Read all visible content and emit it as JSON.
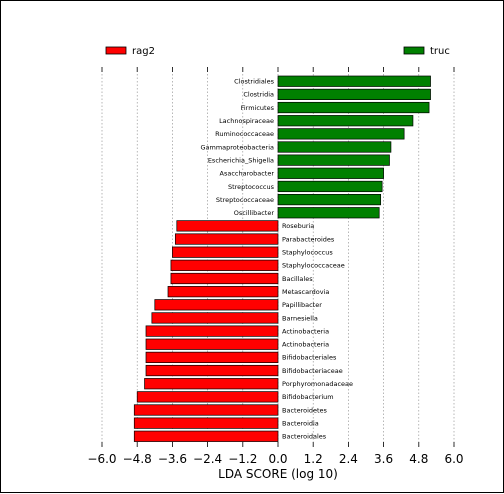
{
  "colors": {
    "rag2": "#ff0000",
    "truc": "#008000",
    "grid": "#888888",
    "edge": "#000000"
  },
  "chart_data": {
    "type": "bar",
    "orientation": "horizontal",
    "title": "",
    "xlabel": "LDA SCORE (log 10)",
    "ylabel": "",
    "xlim": [
      -6.0,
      6.0
    ],
    "xticks": [
      -6.0,
      -4.8,
      -3.6,
      -2.4,
      -1.2,
      0.0,
      1.2,
      2.4,
      3.6,
      4.8,
      6.0
    ],
    "xtick_labels": [
      "−6.0",
      "−4.8",
      "−3.6",
      "−2.4",
      "−1.2",
      "0.0",
      "1.2",
      "2.4",
      "3.6",
      "4.8",
      "6.0"
    ],
    "grid": "vertical dashed",
    "legend": [
      {
        "name": "rag2",
        "color": "#ff0000",
        "position": "top-left"
      },
      {
        "name": "truc",
        "color": "#008000",
        "position": "top-right"
      }
    ],
    "bars": [
      {
        "label": "Clostridiales",
        "value": 5.2,
        "group": "truc"
      },
      {
        "label": "Clostridia",
        "value": 5.2,
        "group": "truc"
      },
      {
        "label": "Firmicutes",
        "value": 5.15,
        "group": "truc"
      },
      {
        "label": "Lachnospiraceae",
        "value": 4.6,
        "group": "truc"
      },
      {
        "label": "Ruminococcaceae",
        "value": 4.3,
        "group": "truc"
      },
      {
        "label": "Gammaproteobacteria",
        "value": 3.85,
        "group": "truc"
      },
      {
        "label": "Escherichia_Shigella",
        "value": 3.8,
        "group": "truc"
      },
      {
        "label": "Asaccharobacter",
        "value": 3.6,
        "group": "truc"
      },
      {
        "label": "Streptococcus",
        "value": 3.55,
        "group": "truc"
      },
      {
        "label": "Streptococcaceae",
        "value": 3.5,
        "group": "truc"
      },
      {
        "label": "Oscillibacter",
        "value": 3.45,
        "group": "truc"
      },
      {
        "label": "Roseburia",
        "value": -3.45,
        "group": "rag2"
      },
      {
        "label": "Parabacteroides",
        "value": -3.5,
        "group": "rag2"
      },
      {
        "label": "Staphylococcus",
        "value": -3.6,
        "group": "rag2"
      },
      {
        "label": "Staphylococcaceae",
        "value": -3.65,
        "group": "rag2"
      },
      {
        "label": "Bacillales",
        "value": -3.65,
        "group": "rag2"
      },
      {
        "label": "Metascardovia",
        "value": -3.75,
        "group": "rag2"
      },
      {
        "label": "Papillibacter",
        "value": -4.2,
        "group": "rag2"
      },
      {
        "label": "Barnesiella",
        "value": -4.3,
        "group": "rag2"
      },
      {
        "label": "Actinobacteria",
        "value": -4.5,
        "group": "rag2"
      },
      {
        "label": "Actinobacteria",
        "value": -4.5,
        "group": "rag2"
      },
      {
        "label": "Bifidobacteriales",
        "value": -4.5,
        "group": "rag2"
      },
      {
        "label": "Bifidobacteriaceae",
        "value": -4.5,
        "group": "rag2"
      },
      {
        "label": "Porphyromonadaceae",
        "value": -4.55,
        "group": "rag2"
      },
      {
        "label": "Bifidobacterium",
        "value": -4.8,
        "group": "rag2"
      },
      {
        "label": "Bacteroidetes",
        "value": -4.9,
        "group": "rag2"
      },
      {
        "label": "Bacteroidia",
        "value": -4.9,
        "group": "rag2"
      },
      {
        "label": "Bacteroidales",
        "value": -4.9,
        "group": "rag2"
      }
    ]
  }
}
